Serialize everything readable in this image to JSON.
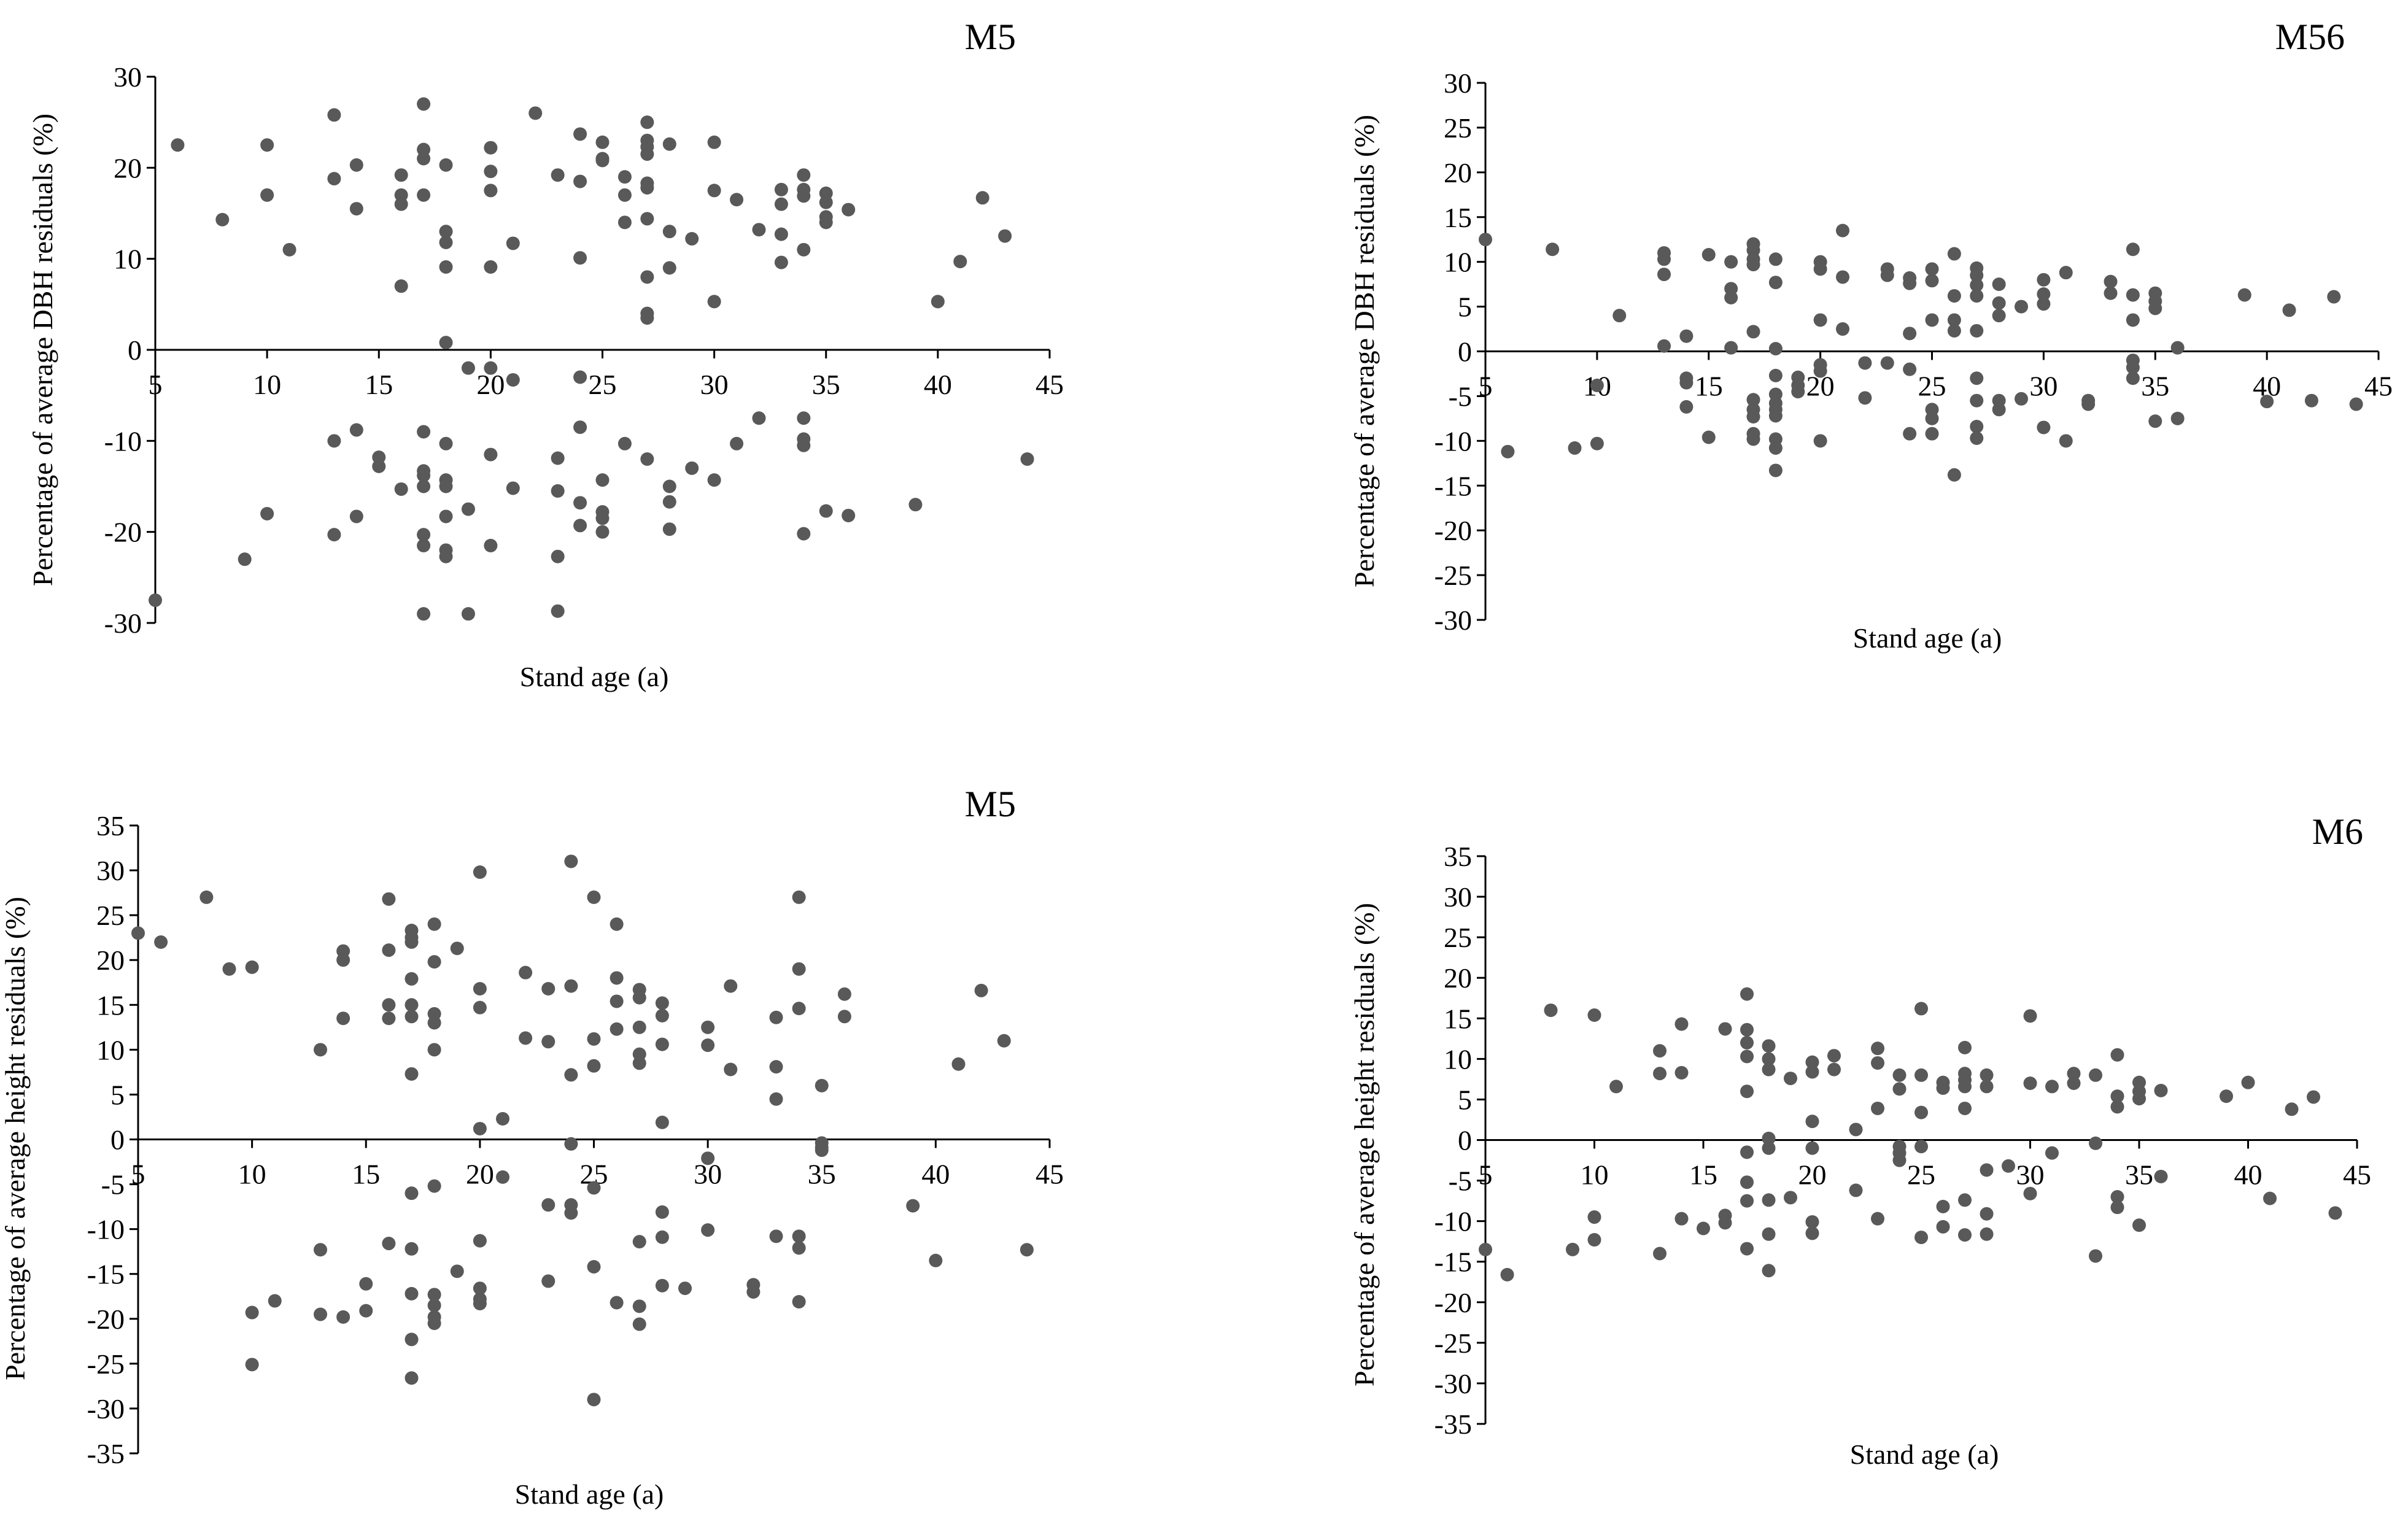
{
  "figure": {
    "colors": {
      "point": "#595959",
      "axis": "#000000",
      "background": "#ffffff"
    }
  },
  "chart_data": [
    {
      "type": "scatter",
      "title": "M5",
      "xlabel": "Stand age (a)",
      "ylabel": "Percentage of average DBH residuals (%)",
      "xlim": [
        5,
        45
      ],
      "ylim": [
        -30,
        30
      ],
      "xticks": [
        5,
        10,
        15,
        20,
        25,
        30,
        35,
        40,
        45
      ],
      "yticks": [
        -30,
        -20,
        -10,
        0,
        10,
        20,
        30
      ],
      "series": [
        {
          "name": "residuals",
          "x": [
            5,
            6,
            8,
            9,
            10,
            10,
            10,
            11,
            13,
            13,
            13,
            13,
            14,
            14,
            14,
            14,
            15,
            15,
            16,
            16,
            16,
            16,
            16,
            17,
            17,
            17,
            17,
            17,
            17,
            17,
            17,
            17,
            17,
            17,
            18,
            18,
            18,
            18,
            18,
            18,
            18,
            18,
            18,
            18,
            18,
            19,
            19,
            19,
            20,
            20,
            20,
            20,
            20,
            20,
            20,
            21,
            21,
            21,
            22,
            23,
            23,
            23,
            23,
            23,
            24,
            24,
            24,
            24,
            24,
            24,
            24,
            25,
            25,
            25,
            25,
            25,
            25,
            25,
            26,
            26,
            26,
            26,
            27,
            27,
            27,
            27,
            27,
            27,
            27,
            27,
            27,
            27,
            27,
            28,
            28,
            28,
            28,
            28,
            28,
            29,
            29,
            30,
            30,
            30,
            30,
            31,
            31,
            32,
            32,
            33,
            33,
            33,
            33,
            34,
            34,
            34,
            34,
            34,
            34,
            34,
            34,
            35,
            35,
            35,
            35,
            35,
            36,
            36,
            39,
            40,
            41,
            42,
            43,
            44
          ],
          "y": [
            -27.5,
            22.5,
            14.3,
            -23,
            22.5,
            17,
            -18,
            11,
            25.8,
            18.8,
            -10,
            -20.3,
            20.3,
            15.5,
            -8.8,
            -18.3,
            -11.8,
            -12.8,
            19.2,
            17,
            16,
            7,
            -15.3,
            27,
            22,
            21,
            17,
            -9,
            -13.3,
            -15,
            -20.3,
            -21.5,
            -29,
            -13.8,
            20.3,
            13,
            11.8,
            9.1,
            0.8,
            -10.3,
            -14.3,
            -15,
            -18.3,
            -22,
            -22.7,
            -2,
            -17.5,
            -29,
            22.2,
            19.6,
            17.5,
            9.1,
            -2,
            -11.5,
            -21.5,
            11.7,
            -3.3,
            -15.2,
            26,
            19.2,
            -11.9,
            -15.5,
            -22.7,
            -28.7,
            23.7,
            18.5,
            10.1,
            -3,
            -8.5,
            -16.8,
            -19.3,
            22.8,
            20.8,
            21,
            -14.3,
            -17.8,
            -18.5,
            -20,
            19,
            17,
            14,
            -10.3,
            25,
            23,
            22.3,
            21.5,
            18.3,
            17.8,
            14.4,
            8,
            4,
            3.5,
            -12,
            22.6,
            13,
            9,
            -15,
            -16.7,
            -19.7,
            12.2,
            -13,
            22.8,
            17.5,
            5.3,
            -14.3,
            16.5,
            -10.3,
            13.2,
            -7.5,
            17.6,
            16,
            12.7,
            9.6,
            19.2,
            17.6,
            16.9,
            11,
            -7.5,
            -9.8,
            -10.5,
            -20.2,
            17.2,
            16.2,
            14.6,
            14,
            -17.7,
            15.4,
            -18.2,
            -17,
            5.3,
            9.7,
            16.7,
            12.5,
            -12
          ]
        }
      ]
    },
    {
      "type": "scatter",
      "title": "M56",
      "xlabel": "Stand age (a)",
      "ylabel": "Percentage of average DBH residuals (%)",
      "xlim": [
        5,
        45
      ],
      "ylim": [
        -30,
        30
      ],
      "xticks": [
        5,
        10,
        15,
        20,
        25,
        30,
        35,
        40,
        45
      ],
      "yticks": [
        -30,
        -25,
        -20,
        -15,
        -10,
        -5,
        0,
        5,
        10,
        15,
        20,
        25,
        30
      ],
      "series": [
        {
          "name": "residuals",
          "x": [
            5,
            6,
            8,
            9,
            10,
            10,
            11,
            13,
            13,
            13,
            13,
            14,
            14,
            14,
            14,
            15,
            15,
            16,
            16,
            16,
            16,
            17,
            17,
            17,
            17,
            17,
            17,
            17,
            17,
            17,
            17,
            18,
            18,
            18,
            18,
            18,
            18,
            18,
            18,
            18,
            18,
            18,
            19,
            19,
            19,
            20,
            20,
            20,
            20,
            20,
            20,
            21,
            21,
            21,
            22,
            22,
            23,
            23,
            23,
            24,
            24,
            24,
            24,
            24,
            25,
            25,
            25,
            25,
            25,
            25,
            26,
            26,
            26,
            26,
            26,
            27,
            27,
            27,
            27,
            27,
            27,
            27,
            27,
            27,
            28,
            28,
            28,
            28,
            28,
            29,
            29,
            30,
            30,
            30,
            30,
            31,
            31,
            32,
            32,
            33,
            33,
            34,
            34,
            34,
            34,
            34,
            34,
            35,
            35,
            35,
            35,
            36,
            36,
            39,
            40,
            41,
            42,
            43,
            44
          ],
          "y": [
            12.5,
            -11.2,
            11.4,
            -10.8,
            -3.8,
            -10.3,
            4,
            11,
            10.3,
            8.6,
            0.6,
            1.7,
            -3,
            -3.5,
            -6.2,
            10.8,
            -9.6,
            10,
            7,
            6,
            0.4,
            12,
            11.3,
            10.3,
            9.7,
            2.2,
            -5.4,
            -6.5,
            -7.3,
            -9.2,
            -9.8,
            10.3,
            7.7,
            0.3,
            -2.7,
            -4.8,
            -5.8,
            -6.5,
            -7.2,
            -9.8,
            -10.8,
            -13.3,
            -2.9,
            -4.5,
            -3.8,
            10,
            9.2,
            3.5,
            -1.5,
            -2.2,
            -10,
            13.5,
            8.3,
            2.5,
            -1.3,
            -5.2,
            9.2,
            8.5,
            -1.3,
            8.2,
            7.6,
            2,
            -2,
            -9.2,
            9.2,
            7.9,
            3.5,
            -6.5,
            -7.5,
            -9.2,
            10.9,
            6.2,
            3.5,
            2.3,
            -13.8,
            9.3,
            8.5,
            7.4,
            6.2,
            2.3,
            -3,
            -5.5,
            -8.4,
            -9.7,
            7.5,
            5.4,
            4,
            -5.5,
            -6.5,
            5,
            -5.3,
            8,
            6.4,
            5.3,
            -8.5,
            8.8,
            -10,
            -5.5,
            -5.9,
            7.8,
            6.5,
            11.4,
            6.3,
            3.5,
            -1,
            -1.8,
            -3,
            6.5,
            5.6,
            4.8,
            -7.8,
            0.4,
            -7.5,
            6.3,
            -5.6,
            4.6,
            -5.5,
            6.1,
            -5.9
          ]
        }
      ]
    },
    {
      "type": "scatter",
      "title": "M5",
      "xlabel": "Stand age (a)",
      "ylabel": "Percentage of average height residuals (%)",
      "xlim": [
        5,
        45
      ],
      "ylim": [
        -35,
        35
      ],
      "xticks": [
        5,
        10,
        15,
        20,
        25,
        30,
        35,
        40,
        45
      ],
      "yticks": [
        -35,
        -30,
        -25,
        -20,
        -15,
        -10,
        -5,
        0,
        5,
        10,
        15,
        20,
        25,
        30,
        35
      ],
      "series": [
        {
          "name": "residuals",
          "x": [
            5,
            6,
            8,
            9,
            10,
            10,
            10,
            11,
            13,
            13,
            13,
            14,
            14,
            14,
            14,
            15,
            15,
            16,
            16,
            16,
            16,
            16,
            17,
            17,
            17,
            17,
            17,
            17,
            17,
            17,
            17,
            17,
            17,
            17,
            18,
            18,
            18,
            18,
            18,
            18,
            18,
            18,
            18,
            18,
            19,
            19,
            20,
            20,
            20,
            20,
            20,
            20,
            20,
            20,
            21,
            21,
            22,
            22,
            23,
            23,
            23,
            23,
            24,
            24,
            24,
            24,
            24,
            24,
            25,
            25,
            25,
            25,
            25,
            25,
            26,
            26,
            26,
            26,
            26,
            27,
            27,
            27,
            27,
            27,
            27,
            27,
            27,
            28,
            28,
            28,
            28,
            28,
            28,
            28,
            29,
            30,
            30,
            30,
            30,
            31,
            31,
            32,
            32,
            33,
            33,
            33,
            33,
            34,
            34,
            34,
            34,
            34,
            34,
            35,
            35,
            35,
            35,
            36,
            36,
            39,
            40,
            41,
            42,
            43,
            44
          ],
          "y": [
            23,
            22,
            27,
            19,
            19.2,
            -19.3,
            -25.1,
            -18,
            10,
            -12.3,
            -19.5,
            21,
            20,
            13.5,
            -19.8,
            -16.1,
            -19.1,
            26.8,
            21.1,
            15,
            13.5,
            -11.6,
            23.3,
            22.5,
            22,
            17.9,
            15,
            13.7,
            7.3,
            -6,
            -12.2,
            -17.2,
            -26.6,
            -22.3,
            24,
            19.8,
            14,
            13,
            10,
            -5.2,
            -17.3,
            -18.5,
            -19.8,
            -20.5,
            21.3,
            -14.7,
            29.8,
            16.8,
            14.7,
            1.2,
            -11.3,
            -17.8,
            -18.3,
            -16.6,
            2.3,
            -4.2,
            18.6,
            11.3,
            16.8,
            10.9,
            -7.3,
            -15.8,
            31,
            17.1,
            7.2,
            -0.5,
            -7.3,
            -8.2,
            27,
            11.2,
            8.2,
            -5.4,
            -14.2,
            -29,
            24,
            18,
            15.4,
            12.3,
            -18.2,
            16.7,
            15.8,
            12.5,
            9.5,
            8.5,
            -11.4,
            -18.6,
            -20.6,
            15.2,
            13.8,
            10.6,
            1.9,
            -8.1,
            -10.9,
            -16.3,
            -16.6,
            12.5,
            10.5,
            -2.1,
            -10.1,
            17.1,
            7.8,
            -16.2,
            -17,
            13.6,
            8.1,
            4.5,
            -10.8,
            27,
            19,
            14.6,
            -10.8,
            -12.1,
            -18.1,
            6,
            -0.4,
            -1.2,
            -0.9,
            13.7,
            16.2,
            -7.4,
            -13.5,
            8.4,
            16.6,
            11,
            -12.3
          ]
        }
      ]
    },
    {
      "type": "scatter",
      "title": "M6",
      "xlabel": "Stand age (a)",
      "ylabel": "Percentage of average height residuals (%)",
      "xlim": [
        5,
        45
      ],
      "ylim": [
        -35,
        35
      ],
      "xticks": [
        5,
        10,
        15,
        20,
        25,
        30,
        35,
        40,
        45
      ],
      "yticks": [
        -35,
        -30,
        -25,
        -20,
        -15,
        -10,
        -5,
        0,
        5,
        10,
        15,
        20,
        25,
        30,
        35
      ],
      "series": [
        {
          "name": "residuals",
          "x": [
            5,
            6,
            8,
            9,
            10,
            10,
            10,
            11,
            13,
            13,
            13,
            14,
            14,
            14,
            15,
            16,
            16,
            16,
            17,
            17,
            17,
            17,
            17,
            17,
            17,
            17,
            17,
            18,
            18,
            18,
            18,
            18,
            18,
            18,
            18,
            19,
            19,
            20,
            20,
            20,
            20,
            20,
            20,
            21,
            21,
            22,
            22,
            23,
            23,
            23,
            23,
            24,
            24,
            24,
            24,
            24,
            25,
            25,
            25,
            25,
            25,
            26,
            26,
            26,
            26,
            27,
            27,
            27,
            27,
            27,
            27,
            27,
            28,
            28,
            28,
            28,
            28,
            29,
            30,
            30,
            30,
            31,
            31,
            32,
            32,
            33,
            33,
            33,
            34,
            34,
            34,
            34,
            34,
            35,
            35,
            35,
            35,
            36,
            36,
            39,
            40,
            41,
            42,
            43,
            44
          ],
          "y": [
            -13.5,
            -16.6,
            16,
            -13.5,
            15.4,
            -9.5,
            -12.3,
            6.6,
            11,
            8.2,
            -14,
            14.3,
            8.3,
            -9.7,
            -10.9,
            13.7,
            -9.3,
            -10.2,
            18,
            13.6,
            12,
            10.3,
            6,
            -1.5,
            -5.2,
            -7.5,
            -13.4,
            11.6,
            10,
            8.7,
            0.2,
            -1,
            -7.4,
            -11.6,
            -16.1,
            7.6,
            -7.1,
            9.6,
            8.4,
            2.3,
            -1,
            -10.1,
            -11.5,
            10.4,
            8.7,
            1.3,
            -6.2,
            11.3,
            9.5,
            3.9,
            -9.7,
            8,
            6.3,
            -0.8,
            -1.6,
            -2.5,
            16.2,
            8,
            3.4,
            -0.8,
            -12,
            7.1,
            6.4,
            -8.2,
            -10.7,
            11.4,
            8.2,
            7.4,
            6.6,
            3.9,
            -7.4,
            -11.7,
            8,
            6.6,
            -3.7,
            -9.1,
            -11.6,
            -3.2,
            15.3,
            7,
            -6.6,
            6.6,
            -1.6,
            8.2,
            7,
            8,
            -0.4,
            -14.3,
            10.5,
            5.4,
            4.1,
            -7,
            -8.3,
            7.1,
            6,
            5.1,
            -10.5,
            6.1,
            -4.5,
            5.4,
            7.1,
            -7.2,
            3.8,
            5.3,
            -9
          ]
        }
      ]
    }
  ]
}
